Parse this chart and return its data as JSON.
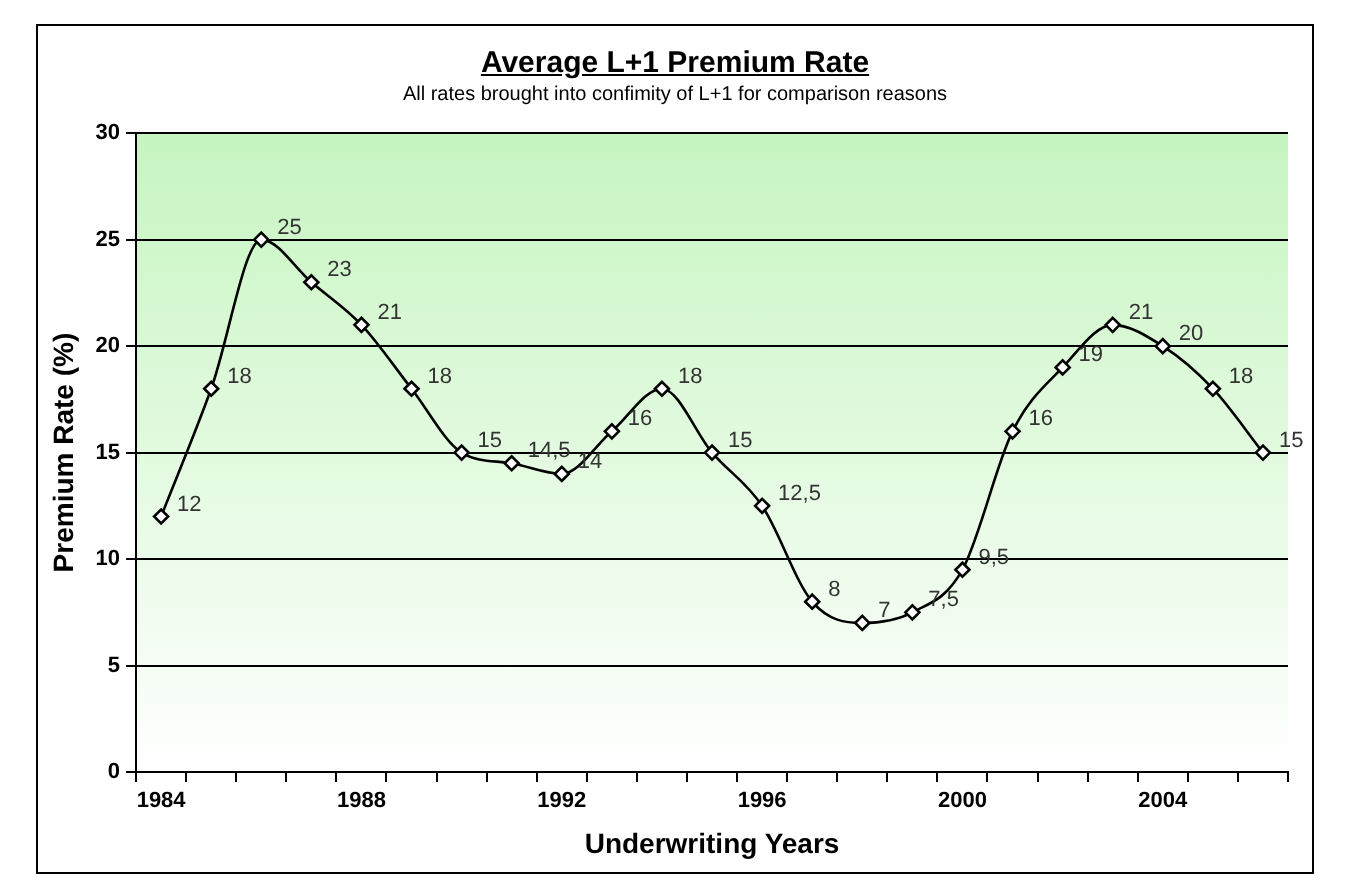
{
  "chart_data": {
    "type": "line",
    "title": "Average L+1 Premium Rate",
    "subtitle": "All rates brought into confimity of L+1 for comparison reasons",
    "xlabel": "Underwriting Years",
    "ylabel": "Premium Rate (%)",
    "categories": [
      "1984",
      null,
      null,
      null,
      "1988",
      null,
      null,
      null,
      "1992",
      null,
      null,
      null,
      "1996",
      null,
      null,
      null,
      "2000",
      null,
      null,
      null,
      "2004",
      null,
      null
    ],
    "series": [
      {
        "color": "#000000",
        "values": [
          12,
          18,
          25,
          23,
          21,
          18,
          15,
          14.5,
          14,
          16,
          18,
          15,
          12.5,
          8,
          7,
          7.5,
          9.5,
          16,
          19,
          21,
          20,
          18,
          15
        ],
        "value_labels": [
          "12",
          "18",
          "25",
          "23",
          "21",
          "18",
          "15",
          "14,5",
          "14",
          "16",
          "18",
          "15",
          "12,5",
          "8",
          "7",
          "7,5",
          "9,5",
          "16",
          "19",
          "21",
          "20",
          "18",
          "15"
        ]
      }
    ],
    "ylim": [
      0,
      30
    ],
    "yticks": [
      0,
      5,
      10,
      15,
      20,
      25,
      30
    ],
    "grid": "y",
    "legend": false,
    "marker": "diamond",
    "line_style": "solid"
  }
}
